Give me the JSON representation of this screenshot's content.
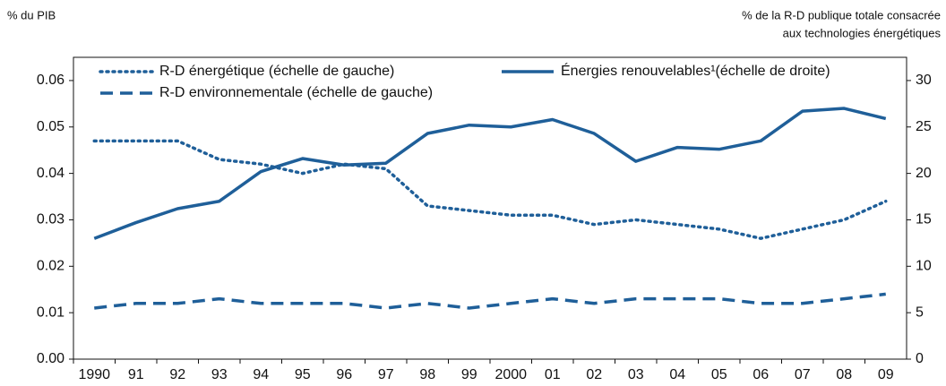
{
  "chart_data": {
    "type": "line",
    "ylabel": "% du PIB",
    "y2label": [
      "% de la R-D publique totale consacrée",
      "aux technologies énergétiques"
    ],
    "categories": [
      "1990",
      "91",
      "92",
      "93",
      "94",
      "95",
      "96",
      "97",
      "98",
      "99",
      "2000",
      "01",
      "02",
      "03",
      "04",
      "05",
      "06",
      "07",
      "08",
      "09"
    ],
    "series": [
      {
        "name": "R-D énergétique (échelle de gauche)",
        "color": "#1f5f99",
        "dash": "dotted",
        "axis": "y",
        "values": [
          0.047,
          0.047,
          0.047,
          0.043,
          0.042,
          0.04,
          0.042,
          0.041,
          0.033,
          0.032,
          0.031,
          0.031,
          0.029,
          0.03,
          0.029,
          0.028,
          0.026,
          0.028,
          0.03,
          0.034
        ]
      },
      {
        "name": "R-D environnementale (échelle de gauche)",
        "color": "#1f5f99",
        "dash": "dashed",
        "axis": "y",
        "values": [
          0.011,
          0.012,
          0.012,
          0.013,
          0.012,
          0.012,
          0.012,
          0.011,
          0.012,
          0.011,
          0.012,
          0.013,
          0.012,
          0.013,
          0.013,
          0.013,
          0.012,
          0.012,
          0.013,
          0.014
        ]
      },
      {
        "name": "Énergies renouvelables¹(échelle de droite)",
        "color": "#1f5f99",
        "dash": "solid",
        "axis": "y2",
        "values": [
          13,
          14.7,
          16.2,
          17,
          20.2,
          21.6,
          20.9,
          21.1,
          24.3,
          25.2,
          25,
          25.8,
          24.3,
          21.3,
          22.8,
          22.6,
          23.5,
          26.7,
          27,
          25.9
        ]
      }
    ],
    "ylim": [
      0,
      0.065
    ],
    "yticks": [
      {
        "value": 0,
        "label": "0.00"
      },
      0.01,
      0.02,
      0.03,
      0.04,
      0.05,
      0.06
    ],
    "y2lim": [
      0,
      32.5
    ],
    "y2ticks": [
      0,
      5,
      10,
      15,
      20,
      25,
      30
    ],
    "grid": false
  }
}
